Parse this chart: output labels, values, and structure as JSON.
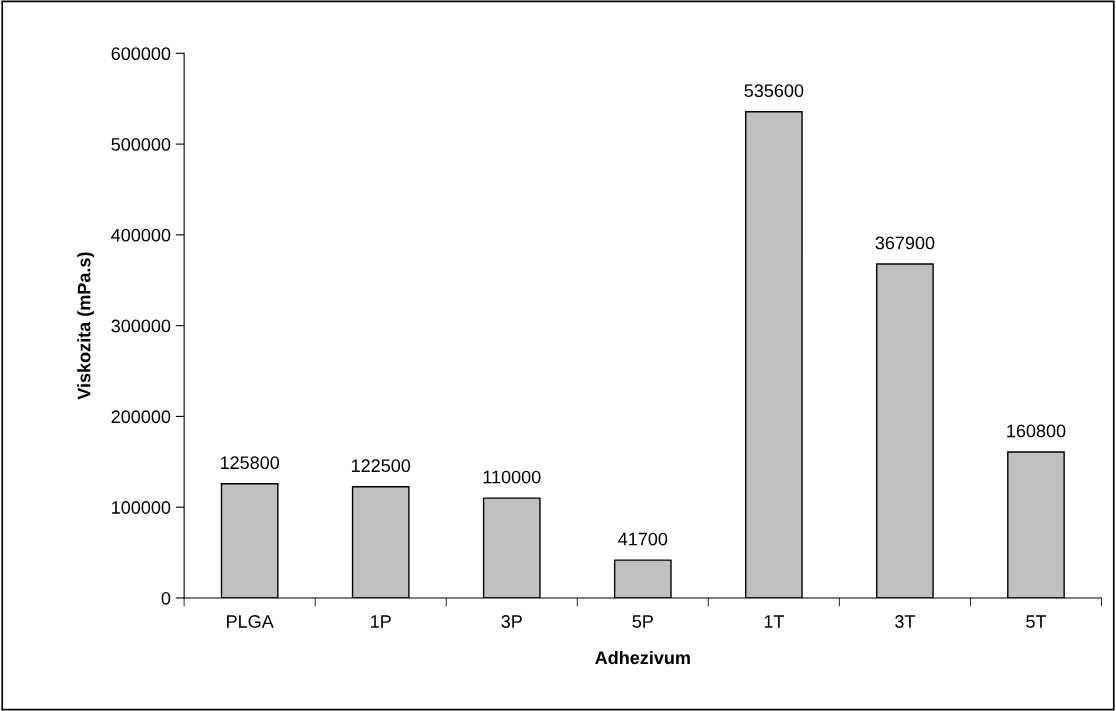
{
  "chart_data": {
    "type": "bar",
    "xlabel": "Adhezivum",
    "ylabel": "Viskozita (mPa.s)",
    "categories": [
      "PLGA",
      "1P",
      "3P",
      "5P",
      "1T",
      "3T",
      "5T"
    ],
    "values": [
      125800,
      122500,
      110000,
      41700,
      535600,
      367900,
      160800
    ],
    "color": "#c0c0c0",
    "ylim": [
      0,
      600000
    ],
    "yticks": [
      0,
      100000,
      200000,
      300000,
      400000,
      500000,
      600000
    ],
    "grid": false,
    "data_labels": true
  }
}
